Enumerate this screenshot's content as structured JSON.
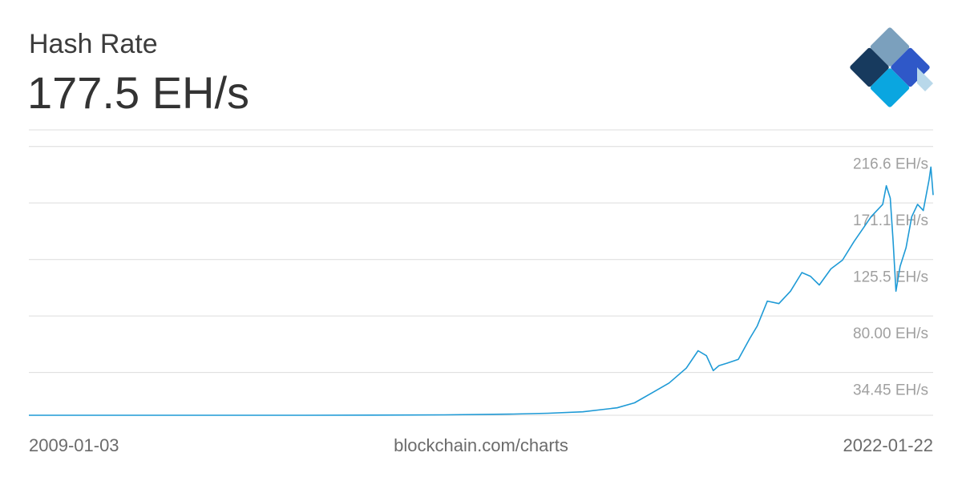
{
  "header": {
    "title": "Hash Rate",
    "current_value": "177.5 EH/s"
  },
  "logo": {
    "icon": "blockchain-logo-icon"
  },
  "footer": {
    "start_date": "2009-01-03",
    "source": "blockchain.com/charts",
    "end_date": "2022-01-22"
  },
  "colors": {
    "line": "#1e9ad6",
    "grid": "#dcdcdc",
    "tick_label": "#a0a0a0"
  },
  "chart_data": {
    "type": "line",
    "x_start": "2009-01-03",
    "x_end": "2022-01-22",
    "ylim": [
      0,
      230
    ],
    "y_ticks": [
      34.45,
      80.0,
      125.5,
      171.1,
      216.6
    ],
    "y_tick_labels": [
      "34.45 EH/s",
      "80.00 EH/s",
      "125.5 EH/s",
      "171.1 EH/s",
      "216.6 EH/s"
    ],
    "grid": true,
    "series": [
      {
        "x": [
          "2009-01-03",
          "2010-01-01",
          "2011-01-01",
          "2012-01-01",
          "2013-01-01",
          "2014-01-01",
          "2015-01-01",
          "2016-01-01",
          "2016-07-01",
          "2017-01-01",
          "2017-07-01",
          "2017-10-01",
          "2018-01-01",
          "2018-04-01",
          "2018-07-01",
          "2018-09-01",
          "2018-10-15",
          "2018-11-20",
          "2018-12-20",
          "2019-02-01",
          "2019-04-01",
          "2019-06-01",
          "2019-07-10",
          "2019-09-01",
          "2019-11-01",
          "2020-01-01",
          "2020-03-01",
          "2020-04-15",
          "2020-06-01",
          "2020-08-01",
          "2020-10-01",
          "2020-12-01",
          "2021-01-15",
          "2021-03-01",
          "2021-05-01",
          "2021-05-20",
          "2021-06-10",
          "2021-06-25",
          "2021-07-10",
          "2021-08-01",
          "2021-09-01",
          "2021-10-01",
          "2021-11-01",
          "2021-12-01",
          "2022-01-01",
          "2022-01-10",
          "2022-01-22"
        ],
        "y": [
          0,
          0,
          0,
          0.001,
          0.01,
          0.1,
          0.35,
          1,
          1.6,
          2.8,
          6,
          10,
          18,
          26,
          38,
          52,
          48,
          36,
          40,
          42,
          45,
          62,
          72,
          92,
          90,
          100,
          115,
          112,
          105,
          118,
          125,
          140,
          150,
          160,
          170,
          185,
          175,
          140,
          100,
          120,
          135,
          160,
          170,
          165,
          190,
          200,
          177.5
        ]
      }
    ]
  }
}
